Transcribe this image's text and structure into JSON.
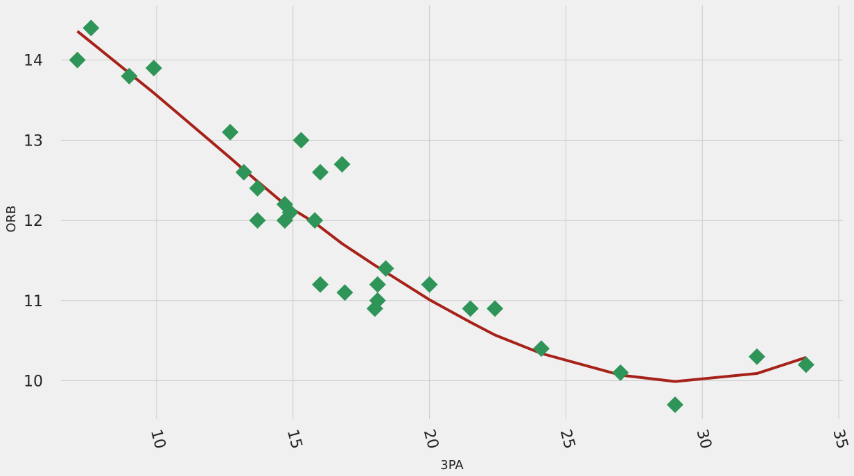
{
  "chart_data": {
    "type": "scatter",
    "xlabel": "3PA",
    "ylabel": "ORB",
    "xlim": [
      6.5,
      35.15
    ],
    "ylim": [
      9.52,
      14.68
    ],
    "xticks": [
      10,
      15,
      20,
      25,
      30,
      35
    ],
    "yticks": [
      10,
      11,
      12,
      13,
      14
    ],
    "grid": true,
    "series": [
      {
        "type": "scatter",
        "color": "#2e9457",
        "x": [
          7.1,
          7.6,
          9.0,
          9.9,
          12.7,
          13.2,
          13.7,
          13.7,
          14.7,
          14.7,
          14.9,
          15.3,
          15.8,
          16.0,
          16.0,
          16.8,
          16.9,
          18.0,
          18.1,
          18.1,
          18.4,
          20.0,
          21.5,
          22.4,
          24.1,
          27.0,
          29.0,
          32.0,
          33.8
        ],
        "values": [
          14.0,
          14.4,
          13.8,
          13.9,
          13.1,
          12.6,
          12.4,
          12.0,
          12.2,
          12.0,
          12.1,
          13.0,
          12.0,
          12.6,
          11.2,
          12.7,
          11.1,
          10.9,
          11.0,
          11.2,
          11.4,
          11.2,
          10.9,
          10.9,
          10.4,
          10.1,
          9.7,
          10.3,
          10.2
        ]
      },
      {
        "type": "line",
        "color": "#a62219",
        "x": [
          7.1,
          9.9,
          12.7,
          13.2,
          14.7,
          15.8,
          16.8,
          18.0,
          20.0,
          21.5,
          22.4,
          24.1,
          27.0,
          29.0,
          32.0,
          33.8
        ],
        "values": [
          14.36,
          13.59,
          12.78,
          12.63,
          12.2,
          11.97,
          11.71,
          11.44,
          11.01,
          10.73,
          10.57,
          10.34,
          10.07,
          9.99,
          10.09,
          10.29
        ]
      }
    ]
  }
}
